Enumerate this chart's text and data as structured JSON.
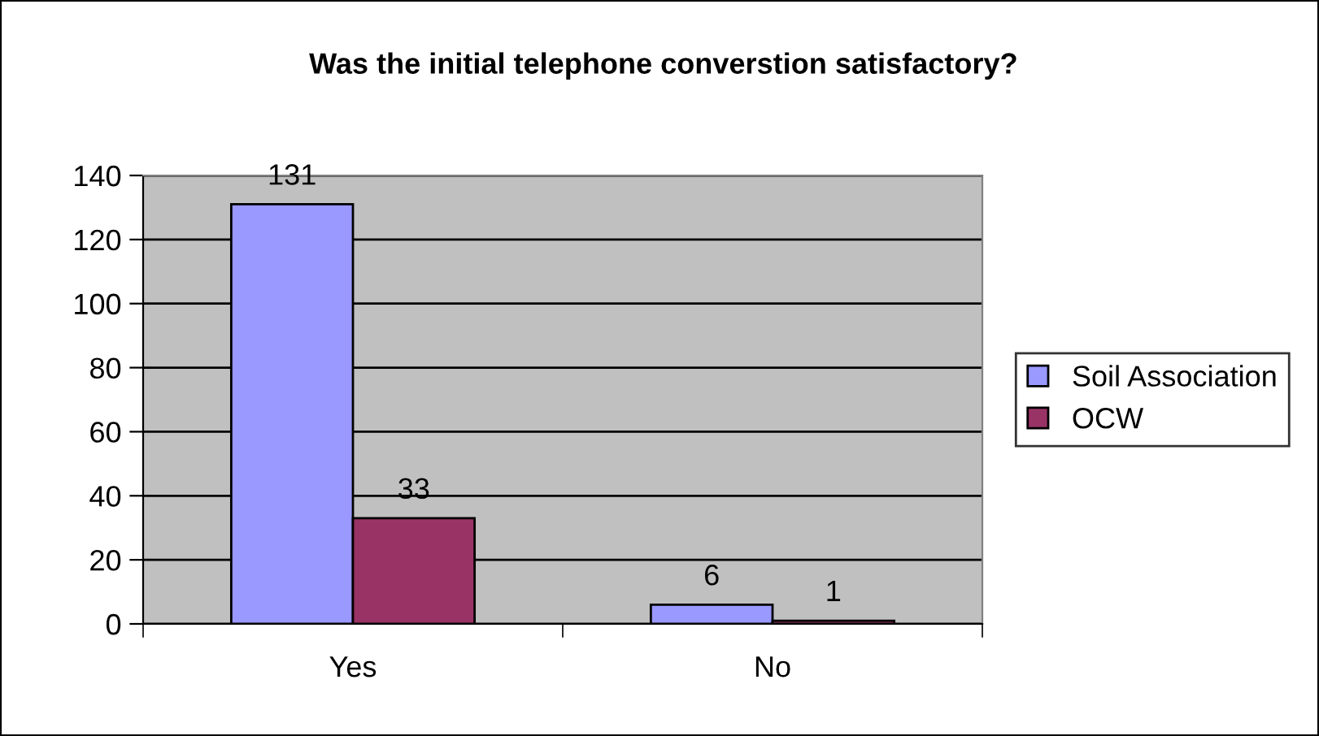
{
  "chart_data": {
    "type": "bar",
    "title": "Was the initial telephone converstion satisfactory?",
    "categories": [
      "Yes",
      "No"
    ],
    "series": [
      {
        "name": "Soil Association",
        "color": "#9999ff",
        "values": [
          131,
          6
        ]
      },
      {
        "name": "OCW",
        "color": "#993366",
        "values": [
          33,
          1
        ]
      }
    ],
    "ylim": [
      0,
      140
    ],
    "yticks": [
      0,
      20,
      40,
      60,
      80,
      100,
      120,
      140
    ],
    "grid": "y",
    "legend": "right",
    "data_labels": true
  }
}
